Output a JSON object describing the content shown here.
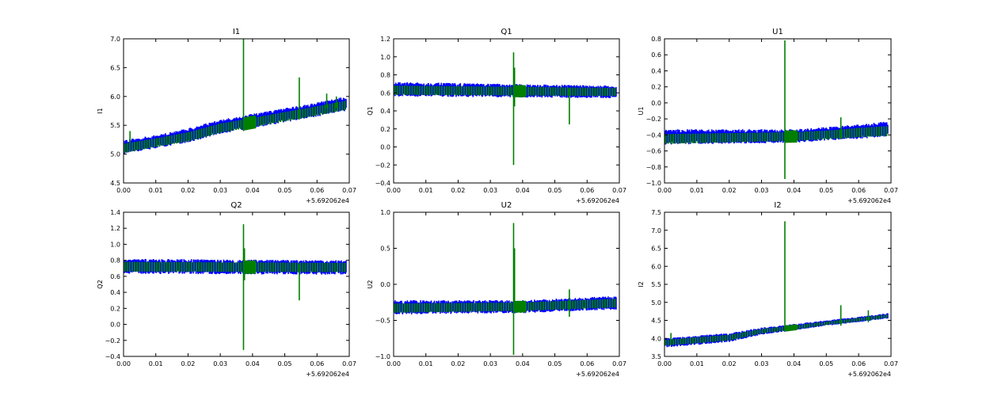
{
  "chart_data": [
    {
      "type": "line",
      "title": "I1",
      "ylabel": "I1",
      "xlim": [
        0.0,
        0.07
      ],
      "ylim": [
        4.5,
        7.0
      ],
      "xticks": [
        "0.00",
        "0.01",
        "0.02",
        "0.03",
        "0.04",
        "0.05",
        "0.06",
        "0.07"
      ],
      "yticks": [
        "4.5",
        "5.0",
        "5.5",
        "6.0",
        "6.5",
        "7.0"
      ],
      "offset_label": "+5.692062e4",
      "colors": [
        "#0000ff",
        "#007f00"
      ],
      "series": [
        {
          "x": [
            0.0,
            0.01,
            0.02,
            0.03,
            0.04,
            0.05,
            0.06,
            0.069
          ],
          "low": [
            5.0,
            5.1,
            5.2,
            5.35,
            5.45,
            5.55,
            5.65,
            5.75
          ],
          "high": [
            5.25,
            5.33,
            5.45,
            5.6,
            5.7,
            5.8,
            5.9,
            6.0
          ]
        },
        {
          "x": [
            0.0,
            0.01,
            0.02,
            0.03,
            0.04,
            0.05,
            0.06,
            0.069
          ],
          "y": [
            5.1,
            5.2,
            5.3,
            5.45,
            5.55,
            5.65,
            5.75,
            5.85
          ],
          "spikes": [
            {
              "x": 0.002,
              "lo": 5.1,
              "hi": 5.4
            },
            {
              "x": 0.0372,
              "lo": 5.4,
              "hi": 7.0
            },
            {
              "x": 0.0545,
              "lo": 5.6,
              "hi": 6.33
            },
            {
              "x": 0.063,
              "lo": 5.8,
              "hi": 6.05
            },
            {
              "x": 0.066,
              "lo": 5.8,
              "hi": 6.0
            }
          ]
        }
      ]
    },
    {
      "type": "line",
      "title": "Q1",
      "ylabel": "Q1",
      "xlim": [
        0.0,
        0.07
      ],
      "ylim": [
        -0.4,
        1.2
      ],
      "xticks": [
        "0.00",
        "0.01",
        "0.02",
        "0.03",
        "0.04",
        "0.05",
        "0.06",
        "0.07"
      ],
      "yticks": [
        "−0.4",
        "−0.2",
        "0.0",
        "0.2",
        "0.4",
        "0.6",
        "0.8",
        "1.0",
        "1.2"
      ],
      "offset_label": "+5.692062e4",
      "colors": [
        "#0000ff",
        "#007f00"
      ],
      "series": [
        {
          "x": [
            0.0,
            0.069
          ],
          "low": [
            0.56,
            0.54
          ],
          "high": [
            0.72,
            0.68
          ]
        },
        {
          "x": [
            0.0,
            0.069
          ],
          "y": [
            0.63,
            0.61
          ],
          "spikes": [
            {
              "x": 0.0372,
              "lo": -0.2,
              "hi": 1.05
            },
            {
              "x": 0.0375,
              "lo": 0.45,
              "hi": 0.88
            },
            {
              "x": 0.0545,
              "lo": 0.25,
              "hi": 0.65
            }
          ]
        }
      ]
    },
    {
      "type": "line",
      "title": "U1",
      "ylabel": "U1",
      "xlim": [
        0.0,
        0.07
      ],
      "ylim": [
        -1.0,
        0.8
      ],
      "xticks": [
        "0.00",
        "0.01",
        "0.02",
        "0.03",
        "0.04",
        "0.05",
        "0.06",
        "0.07"
      ],
      "yticks": [
        "−1.0",
        "−0.8",
        "−0.6",
        "−0.4",
        "−0.2",
        "0.0",
        "0.2",
        "0.4",
        "0.6",
        "0.8"
      ],
      "offset_label": "+5.692062e4",
      "colors": [
        "#0000ff",
        "#007f00"
      ],
      "series": [
        {
          "x": [
            0.0,
            0.04,
            0.05,
            0.06,
            0.069
          ],
          "low": [
            -0.52,
            -0.5,
            -0.47,
            -0.45,
            -0.42
          ],
          "high": [
            -0.33,
            -0.33,
            -0.3,
            -0.27,
            -0.23
          ]
        },
        {
          "x": [
            0.0,
            0.04,
            0.05,
            0.06,
            0.069
          ],
          "y": [
            -0.45,
            -0.42,
            -0.4,
            -0.37,
            -0.35
          ],
          "spikes": [
            {
              "x": 0.0372,
              "lo": -0.95,
              "hi": 0.78
            },
            {
              "x": 0.0545,
              "lo": -0.45,
              "hi": -0.18
            }
          ]
        }
      ]
    },
    {
      "type": "line",
      "title": "Q2",
      "ylabel": "Q2",
      "xlim": [
        0.0,
        0.07
      ],
      "ylim": [
        -0.4,
        1.4
      ],
      "xticks": [
        "0.00",
        "0.01",
        "0.02",
        "0.03",
        "0.04",
        "0.05",
        "0.06",
        "0.07"
      ],
      "yticks": [
        "−0.4",
        "−0.2",
        "0.0",
        "0.2",
        "0.4",
        "0.6",
        "0.8",
        "1.0",
        "1.2",
        "1.4"
      ],
      "offset_label": "+5.692062e4",
      "colors": [
        "#0000ff",
        "#007f00"
      ],
      "series": [
        {
          "x": [
            0.0,
            0.069
          ],
          "low": [
            0.63,
            0.62
          ],
          "high": [
            0.82,
            0.8
          ]
        },
        {
          "x": [
            0.0,
            0.069
          ],
          "y": [
            0.72,
            0.71
          ],
          "spikes": [
            {
              "x": 0.0372,
              "lo": -0.32,
              "hi": 1.25
            },
            {
              "x": 0.0375,
              "lo": 0.55,
              "hi": 0.95
            },
            {
              "x": 0.0545,
              "lo": 0.3,
              "hi": 0.75
            }
          ]
        }
      ]
    },
    {
      "type": "line",
      "title": "U2",
      "ylabel": "U2",
      "xlim": [
        0.0,
        0.07
      ],
      "ylim": [
        -1.0,
        1.0
      ],
      "xticks": [
        "0.00",
        "0.01",
        "0.02",
        "0.03",
        "0.04",
        "0.05",
        "0.06",
        "0.07"
      ],
      "yticks": [
        "−1.0",
        "−0.5",
        "0.0",
        "0.5",
        "1.0"
      ],
      "offset_label": "+5.692062e4",
      "colors": [
        "#0000ff",
        "#007f00"
      ],
      "series": [
        {
          "x": [
            0.0,
            0.04,
            0.069
          ],
          "low": [
            -0.42,
            -0.4,
            -0.35
          ],
          "high": [
            -0.22,
            -0.22,
            -0.16
          ]
        },
        {
          "x": [
            0.0,
            0.04,
            0.069
          ],
          "y": [
            -0.33,
            -0.31,
            -0.26
          ],
          "spikes": [
            {
              "x": 0.0372,
              "lo": -0.98,
              "hi": 0.85
            },
            {
              "x": 0.0375,
              "lo": -0.3,
              "hi": 0.5
            },
            {
              "x": 0.0545,
              "lo": -0.45,
              "hi": -0.07
            }
          ]
        }
      ]
    },
    {
      "type": "line",
      "title": "I2",
      "ylabel": "I2",
      "xlim": [
        0.0,
        0.07
      ],
      "ylim": [
        3.5,
        7.5
      ],
      "xticks": [
        "0.00",
        "0.01",
        "0.02",
        "0.03",
        "0.04",
        "0.05",
        "0.06",
        "0.07"
      ],
      "yticks": [
        "3.5",
        "4.0",
        "4.5",
        "5.0",
        "5.5",
        "6.0",
        "6.5",
        "7.0",
        "7.5"
      ],
      "offset_label": "+5.692062e4",
      "colors": [
        "#0000ff",
        "#007f00"
      ],
      "series": [
        {
          "x": [
            0.0,
            0.01,
            0.02,
            0.03,
            0.04,
            0.05,
            0.06,
            0.069
          ],
          "low": [
            3.75,
            3.82,
            3.9,
            4.1,
            4.22,
            4.35,
            4.45,
            4.55
          ],
          "high": [
            4.0,
            4.08,
            4.15,
            4.3,
            4.4,
            4.5,
            4.6,
            4.7
          ]
        },
        {
          "x": [
            0.0,
            0.01,
            0.02,
            0.03,
            0.04,
            0.05,
            0.06,
            0.069
          ],
          "y": [
            3.88,
            3.95,
            4.02,
            4.2,
            4.3,
            4.42,
            4.52,
            4.62
          ],
          "spikes": [
            {
              "x": 0.002,
              "lo": 3.85,
              "hi": 4.15
            },
            {
              "x": 0.0372,
              "lo": 4.2,
              "hi": 7.25
            },
            {
              "x": 0.0545,
              "lo": 4.35,
              "hi": 4.92
            },
            {
              "x": 0.063,
              "lo": 4.45,
              "hi": 4.78
            }
          ]
        }
      ]
    }
  ]
}
